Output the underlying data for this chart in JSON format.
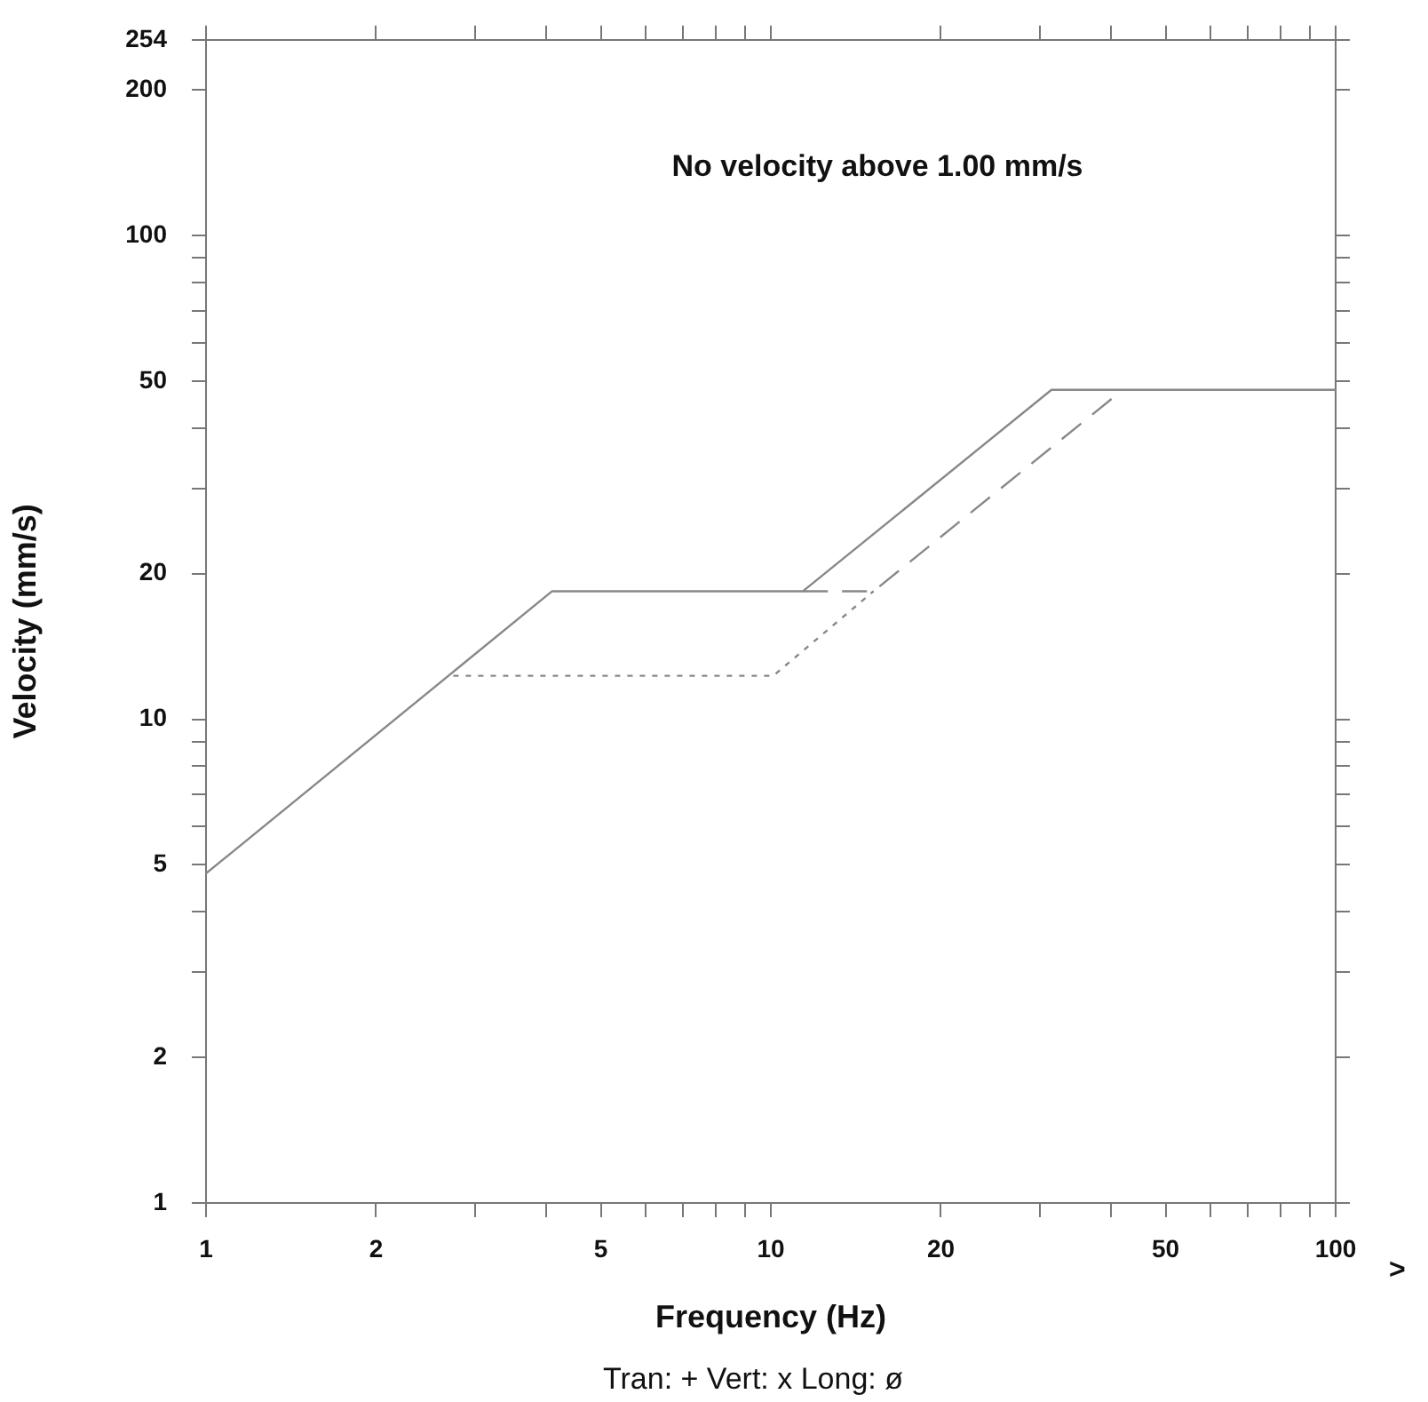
{
  "chart_data": {
    "type": "line",
    "title": "No velocity above 1.00 mm/s",
    "xlabel": "Frequency (Hz)",
    "ylabel": "Velocity (mm/s)",
    "log": "xy",
    "grid": false,
    "legend": false,
    "marker": "none",
    "xlim": [
      1,
      100
    ],
    "ylim": [
      1,
      254
    ],
    "xticks": [
      1,
      2,
      {
        "value": 3,
        "label": null
      },
      {
        "value": 4,
        "label": null
      },
      5,
      {
        "value": 6,
        "label": null
      },
      {
        "value": 7,
        "label": null
      },
      {
        "value": 8,
        "label": null
      },
      {
        "value": 9,
        "label": null
      },
      10,
      20,
      {
        "value": 30,
        "label": null
      },
      {
        "value": 40,
        "label": null
      },
      50,
      {
        "value": 60,
        "label": null
      },
      {
        "value": 70,
        "label": null
      },
      {
        "value": 80,
        "label": null
      },
      {
        "value": 90,
        "label": null
      },
      100
    ],
    "yticks": [
      1,
      2,
      {
        "value": 3,
        "label": null
      },
      {
        "value": 4,
        "label": null
      },
      5,
      {
        "value": 6,
        "label": null
      },
      {
        "value": 7,
        "label": null
      },
      {
        "value": 8,
        "label": null
      },
      {
        "value": 9,
        "label": null
      },
      10,
      20,
      {
        "value": 30,
        "label": null
      },
      {
        "value": 40,
        "label": null
      },
      50,
      {
        "value": 60,
        "label": null
      },
      {
        "value": 70,
        "label": null
      },
      {
        "value": 80,
        "label": null
      },
      {
        "value": 90,
        "label": null
      },
      100,
      200,
      254
    ],
    "series": [
      {
        "color": "#888888",
        "line_style": "solid",
        "x": [
          1,
          4.1,
          11.4,
          31.4,
          100
        ],
        "values": [
          4.8,
          18.4,
          18.4,
          48,
          48
        ]
      },
      {
        "color": "#888888",
        "line_style": "dotted",
        "x": [
          2.74,
          10.1,
          15.2
        ],
        "values": [
          12.3,
          12.3,
          18.4
        ]
      },
      {
        "color": "#888888",
        "line_style": "dashed",
        "x": [
          11.4,
          15.2,
          42
        ],
        "values": [
          18.4,
          18.4,
          48
        ]
      }
    ],
    "annotations": [
      ">",
      "Tran: + Vert: x Long: ø"
    ]
  }
}
